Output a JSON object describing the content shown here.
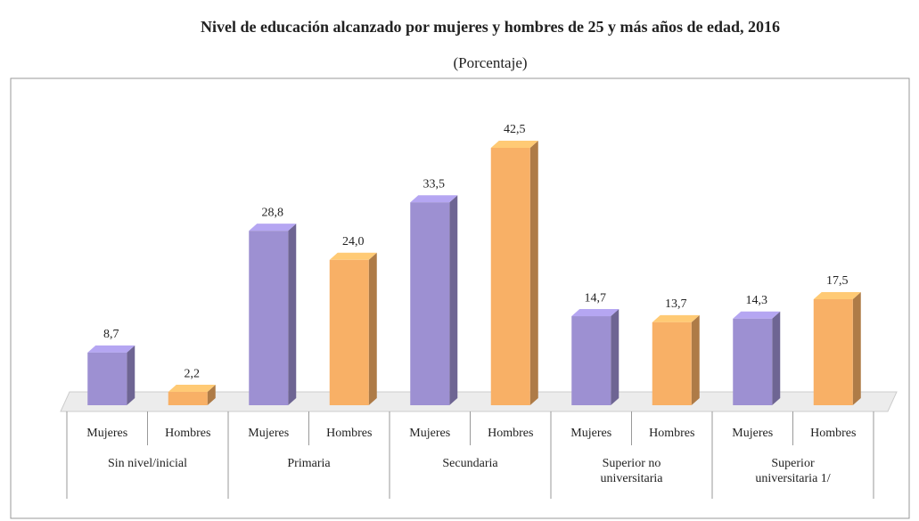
{
  "chart_data": {
    "type": "bar",
    "title": "Nivel de educación alcanzado por mujeres y hombres de 25 y más años de edad,  2016",
    "subtitle": "(Porcentaje)",
    "categories": [
      "Sin nivel/inicial",
      "Primaria",
      "Secundaria",
      "Superior no universitaria",
      "Superior universitaria 1/"
    ],
    "series": [
      {
        "name": "Mujeres",
        "color": "#9d90d2",
        "values": [
          8.7,
          28.8,
          33.5,
          14.7,
          14.3
        ],
        "value_labels": [
          "8,7",
          "28,8",
          "33,5",
          "14,7",
          "14,3"
        ]
      },
      {
        "name": "Hombres",
        "color": "#f8b066",
        "values": [
          2.2,
          24.0,
          42.5,
          13.7,
          17.5
        ],
        "value_labels": [
          "2,2",
          "24,0",
          "42,5",
          "13,7",
          "17,5"
        ]
      }
    ],
    "ylim": [
      0,
      45
    ]
  }
}
